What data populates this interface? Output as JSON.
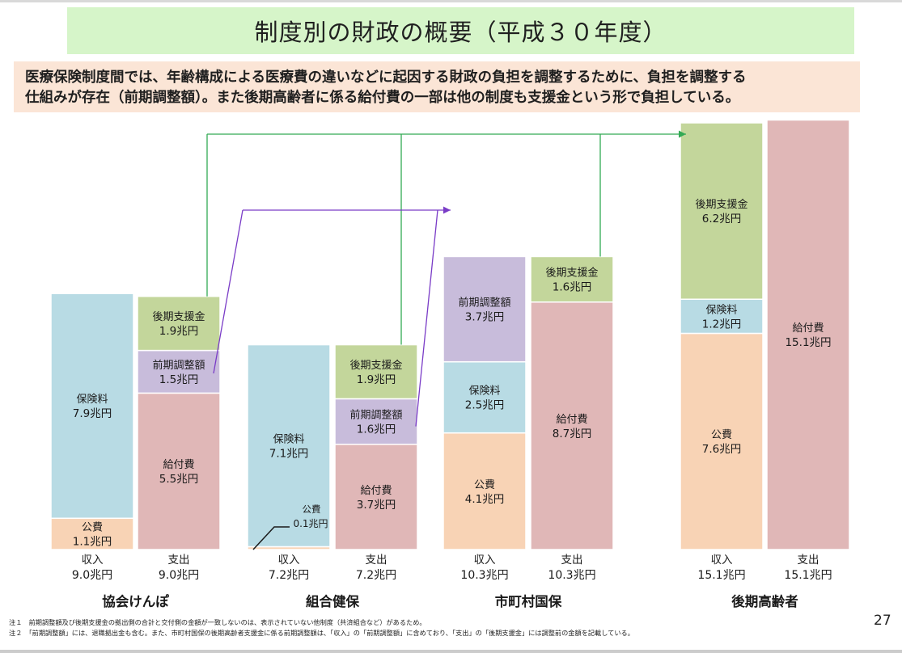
{
  "title": "制度別の財政の概要（平成３０年度）",
  "description": [
    "医療保険制度間では、年齢構成による医療費の違いなどに起因する財政の負担を調整するために、負担を調整する",
    "仕組みが存在（前期調整額）。また後期高齢者に係る給付費の一部は他の制度も支援金という形で負担している。"
  ],
  "colors": {
    "hokenryo": "#b8dbe4",
    "kohi": "#f8d3b5",
    "zenki": "#c8bcdb",
    "koki": "#c3d69b",
    "kyufu": "#e0b7b7",
    "green_arrow": "#33aa55",
    "purple_arrow": "#7a3cc7"
  },
  "chart_data": {
    "type": "bar",
    "stacked": true,
    "unit": "兆円",
    "fiscal_year": "平成30年度",
    "groups": [
      {
        "name": "協会けんぽ",
        "bars": [
          {
            "label": "収入",
            "total": "9.0兆円",
            "segments": [
              {
                "name": "公費",
                "value_text": "1.1兆円",
                "value": 1.1,
                "color": "kohi"
              },
              {
                "name": "保険料",
                "value_text": "7.9兆円",
                "value": 7.9,
                "color": "hokenryo"
              }
            ]
          },
          {
            "label": "支出",
            "total": "9.0兆円",
            "segments": [
              {
                "name": "給付費",
                "value_text": "5.5兆円",
                "value": 5.5,
                "color": "kyufu"
              },
              {
                "name": "前期調整額",
                "value_text": "1.5兆円",
                "value": 1.5,
                "color": "zenki"
              },
              {
                "name": "後期支援金",
                "value_text": "1.9兆円",
                "value": 1.9,
                "color": "koki"
              }
            ]
          }
        ]
      },
      {
        "name": "組合健保",
        "bars": [
          {
            "label": "収入",
            "total": "7.2兆円",
            "segments": [
              {
                "name": "公費",
                "value_text": "0.1兆円",
                "value": 0.1,
                "color": "kohi",
                "callout": true
              },
              {
                "name": "保険料",
                "value_text": "7.1兆円",
                "value": 7.1,
                "color": "hokenryo"
              }
            ]
          },
          {
            "label": "支出",
            "total": "7.2兆円",
            "segments": [
              {
                "name": "給付費",
                "value_text": "3.7兆円",
                "value": 3.7,
                "color": "kyufu"
              },
              {
                "name": "前期調整額",
                "value_text": "1.6兆円",
                "value": 1.6,
                "color": "zenki"
              },
              {
                "name": "後期支援金",
                "value_text": "1.9兆円",
                "value": 1.9,
                "color": "koki"
              }
            ]
          }
        ]
      },
      {
        "name": "市町村国保",
        "bars": [
          {
            "label": "収入",
            "total": "10.3兆円",
            "segments": [
              {
                "name": "公費",
                "value_text": "4.1兆円",
                "value": 4.1,
                "color": "kohi"
              },
              {
                "name": "保険料",
                "value_text": "2.5兆円",
                "value": 2.5,
                "color": "hokenryo"
              },
              {
                "name": "前期調整額",
                "value_text": "3.7兆円",
                "value": 3.7,
                "color": "zenki"
              }
            ]
          },
          {
            "label": "支出",
            "total": "10.3兆円",
            "segments": [
              {
                "name": "給付費",
                "value_text": "8.7兆円",
                "value": 8.7,
                "color": "kyufu"
              },
              {
                "name": "後期支援金",
                "value_text": "1.6兆円",
                "value": 1.6,
                "color": "koki"
              }
            ]
          }
        ]
      },
      {
        "name": "後期高齢者",
        "bars": [
          {
            "label": "収入",
            "total": "15.1兆円",
            "segments": [
              {
                "name": "公費",
                "value_text": "7.6兆円",
                "value": 7.6,
                "color": "kohi"
              },
              {
                "name": "保険料",
                "value_text": "1.2兆円",
                "value": 1.2,
                "color": "hokenryo"
              },
              {
                "name": "後期支援金",
                "value_text": "6.2兆円",
                "value": 6.2,
                "color": "koki"
              }
            ]
          },
          {
            "label": "支出",
            "total": "15.1兆円",
            "segments": [
              {
                "name": "給付費",
                "value_text": "15.1兆円",
                "value": 15.1,
                "color": "kyufu"
              }
            ]
          }
        ]
      }
    ],
    "flows": [
      {
        "kind": "前期調整額",
        "from": [
          "協会けんぽ/支出",
          "組合健保/支出"
        ],
        "to": "市町村国保/収入"
      },
      {
        "kind": "後期支援金",
        "from": [
          "協会けんぽ/支出",
          "組合健保/支出",
          "市町村国保/支出"
        ],
        "to": "後期高齢者/収入"
      }
    ]
  },
  "notes": [
    "注１　前期調整額及び後期支援金の拠出側の合計と交付側の金額が一致しないのは、表示されていない他制度（共済組合など）があるため。",
    "注２　「前期調整額」には、退職拠出金も含む。また、市町村国保の後期高齢者支援金に係る前期調整額は、「収入」の「前期調整額」に含めており、「支出」の「後期支援金」には調整前の金額を記載している。"
  ],
  "page_number": "27"
}
